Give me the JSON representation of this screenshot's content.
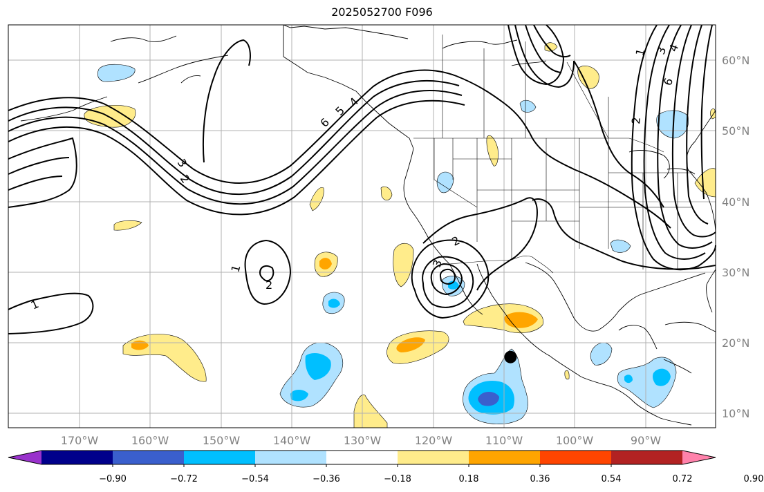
{
  "title": "2025052700 F096",
  "map": {
    "lon_range": [
      -180,
      -80
    ],
    "lat_range": [
      8,
      65
    ],
    "lon_labels": [
      "170°W",
      "160°W",
      "150°W",
      "140°W",
      "130°W",
      "120°W",
      "110°W",
      "100°W",
      "90°W"
    ],
    "lat_labels": [
      "60°N",
      "50°N",
      "40°N",
      "30°N",
      "20°N",
      "10°N"
    ],
    "contour_labels": [
      "1",
      "2",
      "3",
      "4",
      "5",
      "6"
    ],
    "marker": {
      "lon": -109,
      "lat": 18
    }
  },
  "colorbar": {
    "tick_labels": [
      "−0.90",
      "−0.72",
      "−0.54",
      "−0.36",
      "−0.18",
      "0.18",
      "0.36",
      "0.54",
      "0.72",
      "0.90"
    ],
    "colors": [
      "#9932cc",
      "#00008b",
      "#3a5fcd",
      "#00bfff",
      "#b0e2ff",
      "#ffffff",
      "#ffec8b",
      "#ffa500",
      "#ff4500",
      "#b22222",
      "#ff82ab"
    ]
  },
  "colors": {
    "neg_light": "#b0e2ff",
    "neg_mid": "#00bfff",
    "neg_dark": "#3a5fcd",
    "pos_light": "#ffec8b",
    "pos_mid": "#ffa500",
    "grid": "#b0b0b0"
  }
}
